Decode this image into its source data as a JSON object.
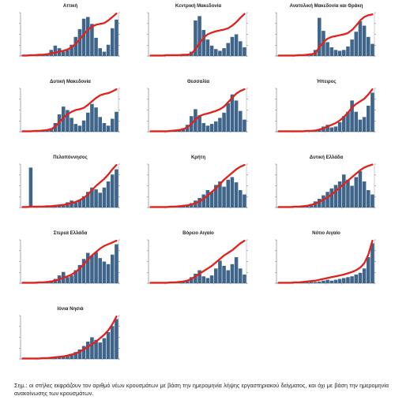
{
  "colors": {
    "bars": "#40658a",
    "line": "#e3211c",
    "axis": "#555555"
  },
  "note": "Σημ.: οι στήλες εκφράζουν τον αριθμό νέων κρουσμάτων με βάση την ημερομηνία λήψης εργαστηριακού δείγματος, και όχι με βάση την ημερομηνία ανακοίνωσης των κρουσμάτων.",
  "chart_data": [
    {
      "type": "bar",
      "title": "Αττική",
      "ylim": [
        0,
        100
      ],
      "y2lim": [
        0,
        100
      ],
      "series": [
        {
          "type": "bar",
          "values": [
            1,
            1,
            1,
            2,
            2,
            3,
            4,
            14,
            24,
            18,
            10,
            14,
            26,
            44,
            62,
            86,
            90,
            74,
            42,
            18,
            10,
            26,
            64,
            84
          ]
        },
        {
          "type": "line",
          "axis": "right",
          "values": [
            1,
            1,
            2,
            2,
            3,
            3,
            4,
            6,
            8,
            10,
            12,
            15,
            20,
            28,
            38,
            50,
            60,
            68,
            72,
            74,
            76,
            82,
            90,
            98
          ]
        }
      ]
    },
    {
      "type": "bar",
      "title": "Κεντρική Μακεδονία",
      "ylim": [
        0,
        100
      ],
      "y2lim": [
        0,
        100
      ],
      "series": [
        {
          "type": "bar",
          "values": [
            0,
            0,
            0,
            0,
            1,
            1,
            2,
            2,
            3,
            4,
            10,
            82,
            92,
            60,
            38,
            24,
            16,
            12,
            18,
            30,
            44,
            50,
            34,
            20
          ]
        },
        {
          "type": "line",
          "axis": "right",
          "values": [
            1,
            1,
            1,
            1,
            2,
            2,
            2,
            2,
            3,
            3,
            5,
            16,
            30,
            42,
            50,
            54,
            57,
            59,
            61,
            64,
            70,
            78,
            88,
            97
          ]
        }
      ]
    },
    {
      "type": "bar",
      "title": "Ανατολική Μακεδονία και Θράκη",
      "ylim": [
        0,
        100
      ],
      "y2lim": [
        0,
        100
      ],
      "series": [
        {
          "type": "bar",
          "values": [
            0,
            0,
            0,
            0,
            1,
            1,
            2,
            4,
            6,
            14,
            88,
            58,
            32,
            20,
            14,
            12,
            14,
            22,
            38,
            56,
            80,
            70,
            44,
            28
          ]
        },
        {
          "type": "line",
          "axis": "right",
          "values": [
            1,
            1,
            1,
            1,
            1,
            2,
            2,
            3,
            4,
            6,
            20,
            32,
            40,
            44,
            46,
            48,
            50,
            53,
            60,
            70,
            82,
            90,
            94,
            96
          ]
        }
      ]
    },
    {
      "type": "bar",
      "title": "Δυτική Μακεδονία",
      "ylim": [
        0,
        100
      ],
      "y2lim": [
        0,
        100
      ],
      "series": [
        {
          "type": "bar",
          "values": [
            0,
            0,
            0,
            1,
            2,
            3,
            4,
            8,
            20,
            40,
            58,
            50,
            32,
            18,
            14,
            26,
            44,
            64,
            56,
            34,
            20,
            14,
            30,
            46
          ]
        },
        {
          "type": "line",
          "axis": "right",
          "values": [
            1,
            1,
            1,
            2,
            2,
            3,
            4,
            6,
            12,
            22,
            32,
            40,
            46,
            50,
            52,
            55,
            62,
            70,
            78,
            84,
            87,
            89,
            93,
            98
          ]
        }
      ]
    },
    {
      "type": "bar",
      "title": "Θεσσαλία",
      "ylim": [
        0,
        100
      ],
      "y2lim": [
        0,
        100
      ],
      "series": [
        {
          "type": "bar",
          "values": [
            0,
            0,
            0,
            0,
            1,
            2,
            3,
            4,
            8,
            16,
            36,
            52,
            38,
            20,
            14,
            18,
            24,
            32,
            44,
            66,
            86,
            72,
            48,
            28
          ]
        },
        {
          "type": "line",
          "axis": "right",
          "values": [
            1,
            1,
            1,
            1,
            1,
            2,
            3,
            4,
            6,
            10,
            18,
            28,
            36,
            40,
            42,
            45,
            48,
            52,
            58,
            68,
            78,
            88,
            94,
            98
          ]
        }
      ]
    },
    {
      "type": "bar",
      "title": "Ήπειρος",
      "ylim": [
        0,
        100
      ],
      "y2lim": [
        0,
        100
      ],
      "series": [
        {
          "type": "bar",
          "values": [
            0,
            0,
            0,
            0,
            1,
            1,
            2,
            3,
            3,
            4,
            6,
            12,
            16,
            10,
            12,
            22,
            36,
            46,
            72,
            46,
            28,
            34,
            60,
            90
          ]
        },
        {
          "type": "line",
          "axis": "right",
          "values": [
            1,
            1,
            1,
            1,
            1,
            1,
            1,
            2,
            2,
            3,
            5,
            8,
            12,
            16,
            20,
            26,
            34,
            44,
            56,
            64,
            70,
            76,
            86,
            98
          ]
        }
      ]
    },
    {
      "type": "bar",
      "title": "Πελοπόννησος",
      "ylim": [
        0,
        100
      ],
      "y2lim": [
        0,
        100
      ],
      "series": [
        {
          "type": "bar",
          "values": [
            0,
            0,
            92,
            1,
            1,
            2,
            2,
            3,
            4,
            6,
            8,
            12,
            16,
            12,
            18,
            26,
            36,
            46,
            42,
            34,
            46,
            60,
            76,
            88
          ]
        },
        {
          "type": "line",
          "axis": "right",
          "values": [
            1,
            1,
            2,
            2,
            2,
            2,
            3,
            3,
            4,
            5,
            6,
            8,
            10,
            13,
            17,
            22,
            30,
            40,
            50,
            58,
            66,
            76,
            88,
            98
          ]
        }
      ]
    },
    {
      "type": "bar",
      "title": "Κρήτη",
      "ylim": [
        0,
        100
      ],
      "y2lim": [
        0,
        100
      ],
      "series": [
        {
          "type": "bar",
          "values": [
            0,
            0,
            0,
            0,
            1,
            1,
            2,
            3,
            4,
            6,
            10,
            16,
            22,
            30,
            40,
            36,
            52,
            60,
            48,
            64,
            70,
            58,
            40,
            30
          ]
        },
        {
          "type": "line",
          "axis": "right",
          "values": [
            1,
            1,
            1,
            1,
            1,
            2,
            2,
            3,
            4,
            5,
            7,
            10,
            14,
            20,
            28,
            36,
            44,
            54,
            64,
            72,
            80,
            88,
            94,
            98
          ]
        }
      ]
    },
    {
      "type": "bar",
      "title": "Δυτική Ελλάδα",
      "ylim": [
        0,
        100
      ],
      "y2lim": [
        0,
        100
      ],
      "series": [
        {
          "type": "bar",
          "values": [
            0,
            0,
            0,
            1,
            1,
            2,
            3,
            4,
            8,
            14,
            20,
            28,
            36,
            44,
            52,
            60,
            76,
            64,
            50,
            70,
            84,
            60,
            40,
            30
          ]
        },
        {
          "type": "line",
          "axis": "right",
          "values": [
            1,
            1,
            1,
            1,
            2,
            2,
            3,
            4,
            6,
            9,
            13,
            18,
            24,
            30,
            38,
            46,
            54,
            62,
            70,
            78,
            86,
            92,
            96,
            99
          ]
        }
      ]
    },
    {
      "type": "bar",
      "title": "Στερεά Ελλάδα",
      "ylim": [
        0,
        100
      ],
      "y2lim": [
        0,
        100
      ],
      "series": [
        {
          "type": "bar",
          "values": [
            0,
            0,
            0,
            1,
            1,
            2,
            3,
            6,
            10,
            18,
            26,
            14,
            18,
            30,
            42,
            56,
            70,
            64,
            72,
            58,
            50,
            44,
            66,
            90
          ]
        },
        {
          "type": "line",
          "axis": "right",
          "values": [
            1,
            1,
            1,
            1,
            2,
            2,
            3,
            4,
            6,
            9,
            13,
            16,
            20,
            26,
            34,
            44,
            54,
            64,
            72,
            80,
            86,
            90,
            94,
            98
          ]
        }
      ]
    },
    {
      "type": "bar",
      "title": "Βόρειο Αιγαίο",
      "ylim": [
        0,
        100
      ],
      "y2lim": [
        0,
        100
      ],
      "series": [
        {
          "type": "bar",
          "values": [
            0,
            0,
            0,
            0,
            1,
            1,
            2,
            2,
            3,
            6,
            14,
            22,
            30,
            16,
            12,
            18,
            34,
            52,
            40,
            30,
            44,
            60,
            34,
            20
          ]
        },
        {
          "type": "line",
          "axis": "right",
          "values": [
            1,
            1,
            1,
            1,
            1,
            2,
            2,
            3,
            4,
            6,
            10,
            16,
            22,
            28,
            34,
            40,
            48,
            56,
            64,
            70,
            76,
            84,
            92,
            98
          ]
        }
      ]
    },
    {
      "type": "bar",
      "title": "Νότιο Αιγαίο",
      "ylim": [
        0,
        100
      ],
      "y2lim": [
        0,
        100
      ],
      "series": [
        {
          "type": "bar",
          "values": [
            0,
            0,
            0,
            0,
            1,
            1,
            2,
            2,
            3,
            3,
            4,
            6,
            8,
            6,
            8,
            10,
            12,
            14,
            16,
            20,
            24,
            34,
            60,
            92
          ]
        },
        {
          "type": "line",
          "axis": "right",
          "values": [
            1,
            1,
            1,
            1,
            2,
            2,
            3,
            4,
            5,
            6,
            8,
            10,
            12,
            14,
            16,
            18,
            20,
            23,
            26,
            30,
            36,
            46,
            66,
            98
          ]
        }
      ]
    },
    {
      "type": "bar",
      "title": "Ιόνια Νησιά",
      "ylim": [
        0,
        100
      ],
      "y2lim": [
        0,
        100
      ],
      "series": [
        {
          "type": "bar",
          "values": [
            0,
            0,
            0,
            0,
            1,
            1,
            2,
            2,
            3,
            4,
            6,
            8,
            12,
            16,
            22,
            30,
            40,
            50,
            44,
            38,
            48,
            62,
            76,
            92
          ]
        },
        {
          "type": "line",
          "axis": "right",
          "values": [
            1,
            1,
            1,
            1,
            1,
            2,
            2,
            3,
            4,
            5,
            6,
            8,
            10,
            13,
            17,
            22,
            28,
            34,
            40,
            48,
            56,
            66,
            80,
            98
          ]
        }
      ]
    }
  ]
}
